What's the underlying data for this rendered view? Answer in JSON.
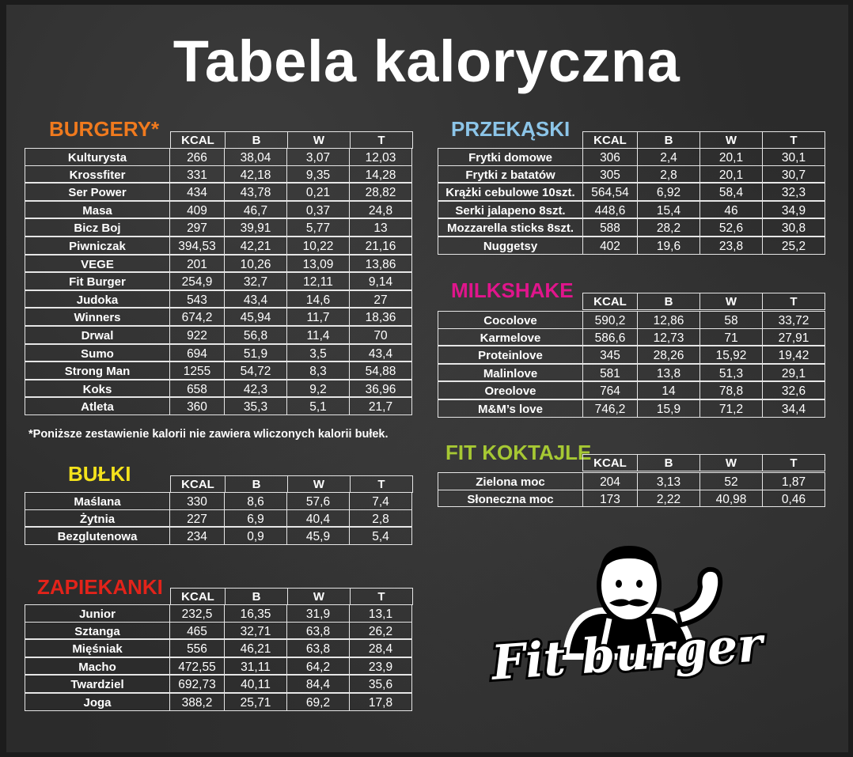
{
  "title": "Tabela kaloryczna",
  "colors": {
    "burgery": "#f07a1e",
    "przekaski": "#8cc5e8",
    "milkshake": "#e0158c",
    "fit_koktajle": "#a6c833",
    "bulki": "#f4e21c",
    "zapiekanki": "#e2231a"
  },
  "columns": [
    "KCAL",
    "B",
    "W",
    "T"
  ],
  "burgery": {
    "title": "BURGERY*",
    "rows": [
      [
        "Kulturysta",
        "266",
        "38,04",
        "3,07",
        "12,03"
      ],
      [
        "Krossfiter",
        "331",
        "42,18",
        "9,35",
        "14,28"
      ],
      [
        "Ser Power",
        "434",
        "43,78",
        "0,21",
        "28,82"
      ],
      [
        "Masa",
        "409",
        "46,7",
        "0,37",
        "24,8"
      ],
      [
        "Bicz Boj",
        "297",
        "39,91",
        "5,77",
        "13"
      ],
      [
        "Piwniczak",
        "394,53",
        "42,21",
        "10,22",
        "21,16"
      ],
      [
        "VEGE",
        "201",
        "10,26",
        "13,09",
        "13,86"
      ],
      [
        "Fit Burger",
        "254,9",
        "32,7",
        "12,11",
        "9,14"
      ],
      [
        "Judoka",
        "543",
        "43,4",
        "14,6",
        "27"
      ],
      [
        "Winners",
        "674,2",
        "45,94",
        "11,7",
        "18,36"
      ],
      [
        "Drwal",
        "922",
        "56,8",
        "11,4",
        "70"
      ],
      [
        "Sumo",
        "694",
        "51,9",
        "3,5",
        "43,4"
      ],
      [
        "Strong Man",
        "1255",
        "54,72",
        "8,3",
        "54,88"
      ],
      [
        "Koks",
        "658",
        "42,3",
        "9,2",
        "36,96"
      ],
      [
        "Atleta",
        "360",
        "35,3",
        "5,1",
        "21,7"
      ]
    ]
  },
  "note": "*Poniższe zestawienie kalorii nie zawiera wliczonych kalorii bułek.",
  "bulki": {
    "title": "BUŁKI",
    "rows": [
      [
        "Maślana",
        "330",
        "8,6",
        "57,6",
        "7,4"
      ],
      [
        "Żytnia",
        "227",
        "6,9",
        "40,4",
        "2,8"
      ],
      [
        "Bezglutenowa",
        "234",
        "0,9",
        "45,9",
        "5,4"
      ]
    ]
  },
  "zapiekanki": {
    "title": "ZAPIEKANKI",
    "rows": [
      [
        "Junior",
        "232,5",
        "16,35",
        "31,9",
        "13,1"
      ],
      [
        "Sztanga",
        "465",
        "32,71",
        "63,8",
        "26,2"
      ],
      [
        "Mięśniak",
        "556",
        "46,21",
        "63,8",
        "28,4"
      ],
      [
        "Macho",
        "472,55",
        "31,11",
        "64,2",
        "23,9"
      ],
      [
        "Twardziel",
        "692,73",
        "40,11",
        "84,4",
        "35,6"
      ],
      [
        "Joga",
        "388,2",
        "25,71",
        "69,2",
        "17,8"
      ]
    ]
  },
  "przekaski": {
    "title": "PRZEKĄSKI",
    "rows": [
      [
        "Frytki domowe",
        "306",
        "2,4",
        "20,1",
        "30,1"
      ],
      [
        "Frytki z batatów",
        "305",
        "2,8",
        "20,1",
        "30,7"
      ],
      [
        "Krążki cebulowe 10szt.",
        "564,54",
        "6,92",
        "58,4",
        "32,3"
      ],
      [
        "Serki jalapeno 8szt.",
        "448,6",
        "15,4",
        "46",
        "34,9"
      ],
      [
        "Mozzarella sticks 8szt.",
        "588",
        "28,2",
        "52,6",
        "30,8"
      ],
      [
        "Nuggetsy",
        "402",
        "19,6",
        "23,8",
        "25,2"
      ]
    ]
  },
  "milkshake": {
    "title": "MILKSHAKE",
    "rows": [
      [
        "Cocolove",
        "590,2",
        "12,86",
        "58",
        "33,72"
      ],
      [
        "Karmelove",
        "586,6",
        "12,73",
        "71",
        "27,91"
      ],
      [
        "Proteinlove",
        "345",
        "28,26",
        "15,92",
        "19,42"
      ],
      [
        "Malinlove",
        "581",
        "13,8",
        "51,3",
        "29,1"
      ],
      [
        "Oreolove",
        "764",
        "14",
        "78,8",
        "32,6"
      ],
      [
        "M&M’s love",
        "746,2",
        "15,9",
        "71,2",
        "34,4"
      ]
    ]
  },
  "fit_koktajle": {
    "title": "FIT KOKTAJLE",
    "rows": [
      [
        "Zielona moc",
        "204",
        "3,13",
        "52",
        "1,87"
      ],
      [
        "Słoneczna moc",
        "173",
        "2,22",
        "40,98",
        "0,46"
      ]
    ]
  },
  "logo": {
    "text": "Fit burger",
    "icon": "strongman-mascot-icon"
  }
}
